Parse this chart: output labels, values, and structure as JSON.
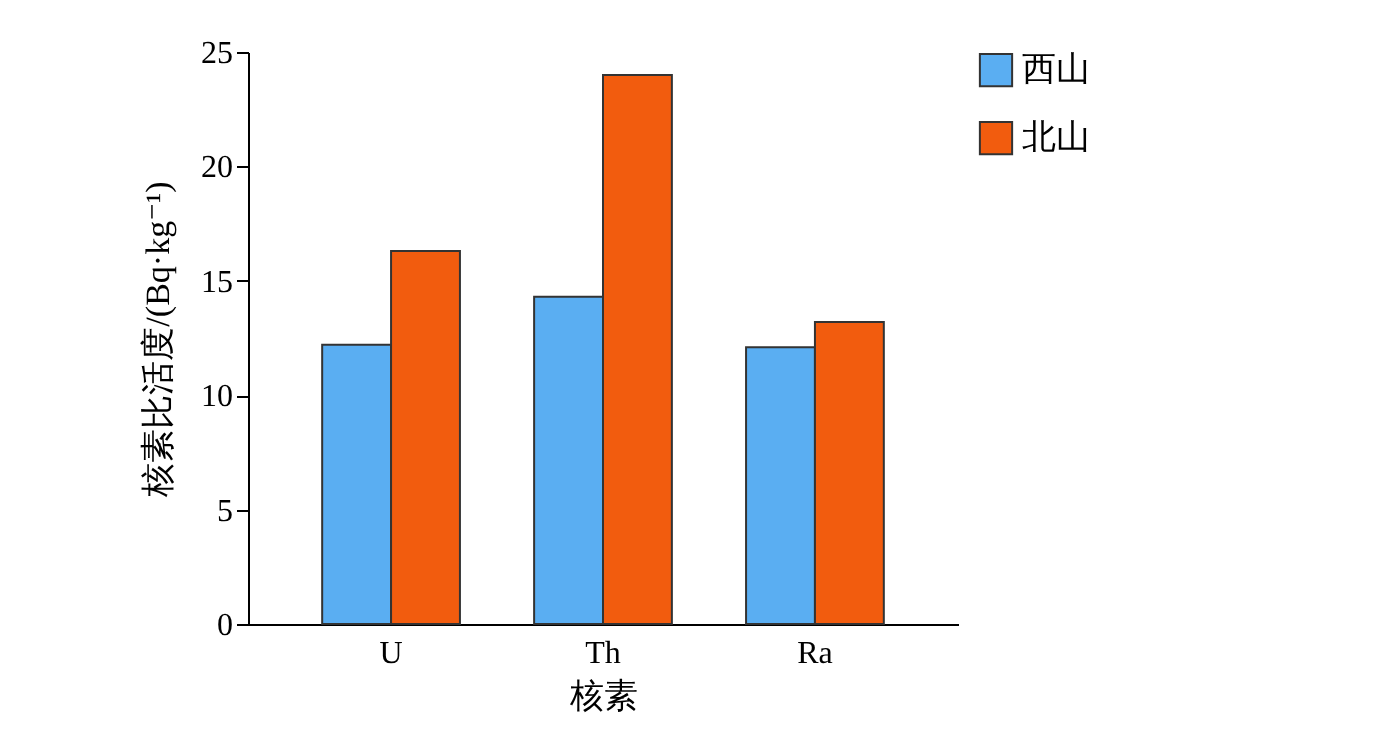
{
  "chart_data": {
    "type": "bar",
    "xlabel": "核素",
    "ylabel": "核素比活度/(Bq·kg⁻¹)",
    "categories": [
      "U",
      "Th",
      "Ra"
    ],
    "series": [
      {
        "name": "西山",
        "color": "#5aaef2",
        "values": [
          12.2,
          14.3,
          12.1
        ]
      },
      {
        "name": "北山",
        "color": "#f25c0e",
        "values": [
          16.3,
          24.0,
          13.2
        ]
      }
    ],
    "ylim": [
      0,
      25
    ],
    "yticks": [
      0,
      5,
      10,
      15,
      20,
      25
    ],
    "grid": false,
    "legend": "right"
  }
}
